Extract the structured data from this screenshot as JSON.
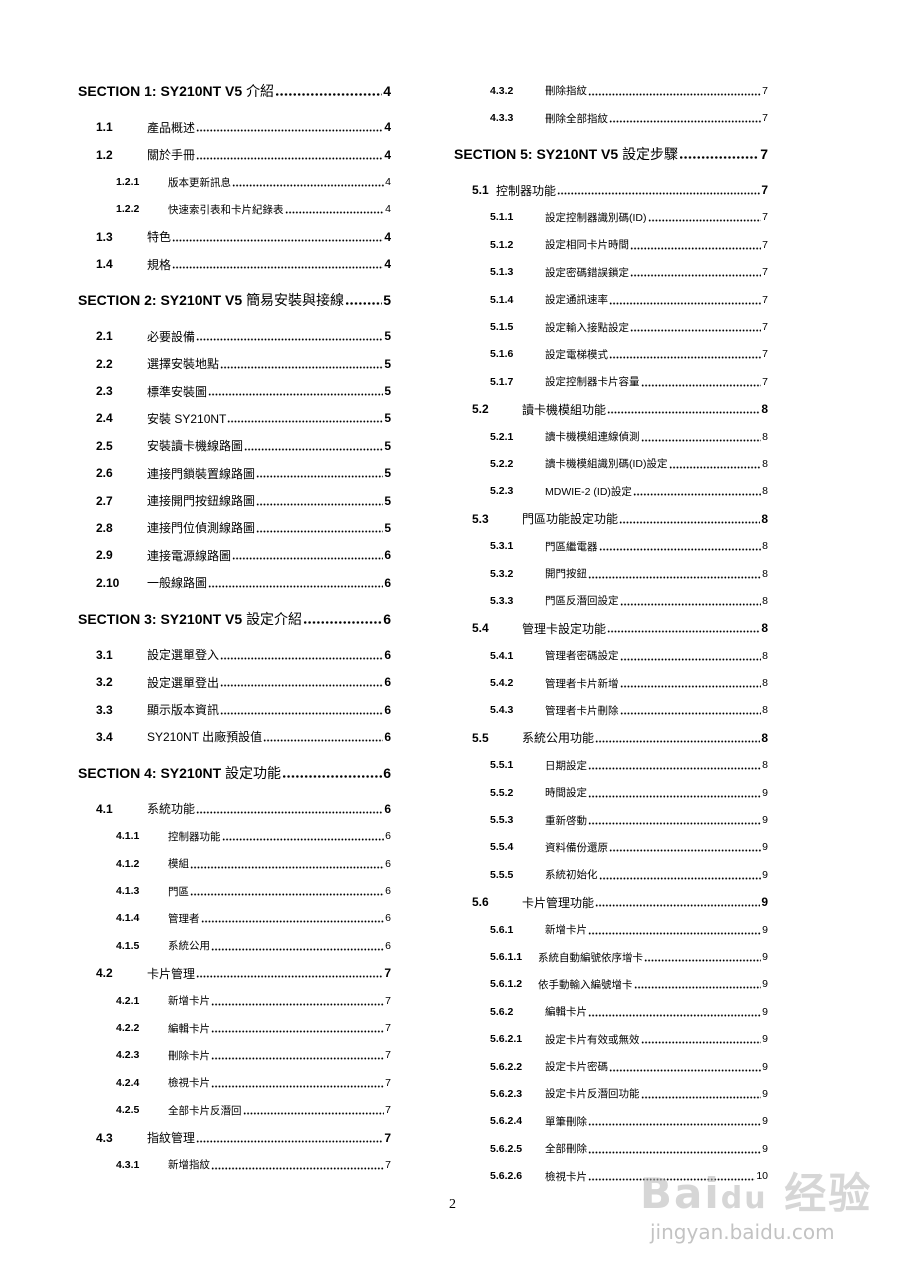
{
  "toc": {
    "left": [
      {
        "level": 0,
        "num": "",
        "title": "SECTION 1: SY210NT V5 介紹",
        "page": "4"
      },
      {
        "level": 1,
        "num": "1.1",
        "title": "產品概述",
        "page": "4"
      },
      {
        "level": 1,
        "num": "1.2",
        "title": "關於手冊",
        "page": "4"
      },
      {
        "level": 2,
        "num": "1.2.1",
        "title": "版本更新訊息",
        "page": "4"
      },
      {
        "level": 2,
        "num": "1.2.2",
        "title": "快速索引表和卡片紀錄表",
        "page": "4"
      },
      {
        "level": 1,
        "num": "1.3",
        "title": "特色",
        "page": "4"
      },
      {
        "level": 1,
        "num": "1.4",
        "title": "規格",
        "page": "4"
      },
      {
        "level": 0,
        "num": "",
        "title": "SECTION 2: SY210NT V5 簡易安裝與接線",
        "page": "5"
      },
      {
        "level": 1,
        "num": "2.1",
        "title": "必要設備",
        "page": "5"
      },
      {
        "level": 1,
        "num": "2.2",
        "title": "選擇安裝地點",
        "page": "5"
      },
      {
        "level": 1,
        "num": "2.3",
        "title": "標準安裝圖",
        "page": "5"
      },
      {
        "level": 1,
        "num": "2.4",
        "title": "安裝 SY210NT",
        "page": "5"
      },
      {
        "level": 1,
        "num": "2.5",
        "title": "安裝讀卡機線路圖",
        "page": "5"
      },
      {
        "level": 1,
        "num": "2.6",
        "title": "連接門鎖裝置線路圖",
        "page": "5"
      },
      {
        "level": 1,
        "num": "2.7",
        "title": "連接開門按鈕線路圖",
        "page": "5"
      },
      {
        "level": 1,
        "num": "2.8",
        "title": "連接門位偵測線路圖",
        "page": "5"
      },
      {
        "level": 1,
        "num": "2.9",
        "title": "連接電源線路圖",
        "page": "6"
      },
      {
        "level": 1,
        "num": "2.10",
        "title": "一般線路圖",
        "page": "6"
      },
      {
        "level": 0,
        "num": "",
        "title": "SECTION 3: SY210NT V5 設定介紹",
        "page": "6"
      },
      {
        "level": 1,
        "num": "3.1",
        "title": "設定選單登入",
        "page": "6"
      },
      {
        "level": 1,
        "num": "3.2",
        "title": "設定選單登出",
        "page": "6"
      },
      {
        "level": 1,
        "num": "3.3",
        "title": "顯示版本資訊",
        "page": "6"
      },
      {
        "level": 1,
        "num": "3.4",
        "title": "SY210NT 出廠預設值",
        "page": "6"
      },
      {
        "level": 0,
        "num": "",
        "title": "SECTION 4: SY210NT 設定功能",
        "page": "6"
      },
      {
        "level": 1,
        "num": "4.1",
        "title": "系統功能",
        "page": "6"
      },
      {
        "level": 2,
        "num": "4.1.1",
        "title": "控制器功能",
        "page": "6"
      },
      {
        "level": 2,
        "num": "4.1.2",
        "title": "模組",
        "page": "6"
      },
      {
        "level": 2,
        "num": "4.1.3",
        "title": "門區",
        "page": "6"
      },
      {
        "level": 2,
        "num": "4.1.4",
        "title": "管理者",
        "page": "6"
      },
      {
        "level": 2,
        "num": "4.1.5",
        "title": "系統公用",
        "page": "6"
      },
      {
        "level": 1,
        "num": "4.2",
        "title": "卡片管理",
        "page": "7"
      },
      {
        "level": 2,
        "num": "4.2.1",
        "title": "新增卡片",
        "page": "7"
      },
      {
        "level": 2,
        "num": "4.2.2",
        "title": "編輯卡片",
        "page": "7"
      },
      {
        "level": 2,
        "num": "4.2.3",
        "title": "刪除卡片",
        "page": "7"
      },
      {
        "level": 2,
        "num": "4.2.4",
        "title": "檢視卡片",
        "page": "7"
      },
      {
        "level": 2,
        "num": "4.2.5",
        "title": "全部卡片反潛回",
        "page": "7"
      },
      {
        "level": 1,
        "num": "4.3",
        "title": "指紋管理",
        "page": "7"
      },
      {
        "level": 2,
        "num": "4.3.1",
        "title": "新增指紋",
        "page": "7"
      }
    ],
    "right": [
      {
        "level": 2,
        "num": "4.3.2",
        "title": "刪除指紋",
        "page": "7"
      },
      {
        "level": 2,
        "num": "4.3.3",
        "title": "刪除全部指紋",
        "page": "7"
      },
      {
        "level": 0,
        "num": "",
        "title": "SECTION 5: SY210NT V5 設定步驟",
        "page": "7"
      },
      {
        "level": 1,
        "num": "5.1",
        "title": "控制器功能",
        "page": "7",
        "compact": true
      },
      {
        "level": 2,
        "num": "5.1.1",
        "title": "設定控制器識別碼(ID)",
        "page": "7"
      },
      {
        "level": 2,
        "num": "5.1.2",
        "title": "設定相同卡片時間",
        "page": "7"
      },
      {
        "level": 2,
        "num": "5.1.3",
        "title": "設定密碼錯誤鎖定",
        "page": "7"
      },
      {
        "level": 2,
        "num": "5.1.4",
        "title": "設定通訊速率",
        "page": "7"
      },
      {
        "level": 2,
        "num": "5.1.5",
        "title": "設定輸入接點設定",
        "page": "7"
      },
      {
        "level": 2,
        "num": "5.1.6",
        "title": "設定電梯模式",
        "page": "7"
      },
      {
        "level": 2,
        "num": "5.1.7",
        "title": "設定控制器卡片容量",
        "page": "7"
      },
      {
        "level": 1,
        "num": "5.2",
        "title": "讀卡機模組功能",
        "page": "8"
      },
      {
        "level": 2,
        "num": "5.2.1",
        "title": "讀卡機模組連線偵測",
        "page": "8"
      },
      {
        "level": 2,
        "num": "5.2.2",
        "title": "讀卡機模組識別碼(ID)設定",
        "page": "8"
      },
      {
        "level": 2,
        "num": "5.2.3",
        "title": "MDWIE-2 (ID)設定",
        "page": "8"
      },
      {
        "level": 1,
        "num": "5.3",
        "title": "門區功能設定功能",
        "page": "8"
      },
      {
        "level": 2,
        "num": "5.3.1",
        "title": "門區繼電器",
        "page": "8"
      },
      {
        "level": 2,
        "num": "5.3.2",
        "title": "開門按鈕",
        "page": "8"
      },
      {
        "level": 2,
        "num": "5.3.3",
        "title": "門區反潛回設定",
        "page": "8"
      },
      {
        "level": 1,
        "num": "5.4",
        "title": "管理卡設定功能",
        "page": "8"
      },
      {
        "level": 2,
        "num": "5.4.1",
        "title": "管理者密碼設定",
        "page": "8"
      },
      {
        "level": 2,
        "num": "5.4.2",
        "title": "管理者卡片新增",
        "page": "8"
      },
      {
        "level": 2,
        "num": "5.4.3",
        "title": "管理者卡片刪除",
        "page": "8"
      },
      {
        "level": 1,
        "num": "5.5",
        "title": "系統公用功能",
        "page": "8"
      },
      {
        "level": 2,
        "num": "5.5.1",
        "title": "日期設定",
        "page": "8"
      },
      {
        "level": 2,
        "num": "5.5.2",
        "title": "時間設定",
        "page": "9"
      },
      {
        "level": 2,
        "num": "5.5.3",
        "title": "重新啓動",
        "page": "9"
      },
      {
        "level": 2,
        "num": "5.5.4",
        "title": "資料備份還原",
        "page": "9"
      },
      {
        "level": 2,
        "num": "5.5.5",
        "title": "系統初始化",
        "page": "9"
      },
      {
        "level": 1,
        "num": "5.6",
        "title": "卡片管理功能",
        "page": "9"
      },
      {
        "level": 2,
        "num": "5.6.1",
        "title": "新增卡片",
        "page": "9"
      },
      {
        "level": 2,
        "num": "5.6.1.1",
        "title": "系統自動編號依序增卡",
        "page": "9",
        "deep": true
      },
      {
        "level": 2,
        "num": "5.6.1.2",
        "title": "依手動輸入編號增卡",
        "page": "9",
        "deep": true
      },
      {
        "level": 2,
        "num": "5.6.2",
        "title": "編輯卡片",
        "page": "9"
      },
      {
        "level": 2,
        "num": "5.6.2.1",
        "title": "設定卡片有效或無效",
        "page": "9"
      },
      {
        "level": 2,
        "num": "5.6.2.2",
        "title": "設定卡片密碼",
        "page": "9"
      },
      {
        "level": 2,
        "num": "5.6.2.3",
        "title": "設定卡片反潛回功能",
        "page": "9"
      },
      {
        "level": 2,
        "num": "5.6.2.4",
        "title": "單筆刪除",
        "page": "9"
      },
      {
        "level": 2,
        "num": "5.6.2.5",
        "title": "全部刪除",
        "page": "9"
      },
      {
        "level": 2,
        "num": "5.6.2.6",
        "title": "檢視卡片",
        "page": "10"
      }
    ]
  },
  "footer": {
    "page_number": "2"
  },
  "watermark": {
    "logo": "Baidu 经验",
    "url": "jingyan.baidu.com"
  }
}
